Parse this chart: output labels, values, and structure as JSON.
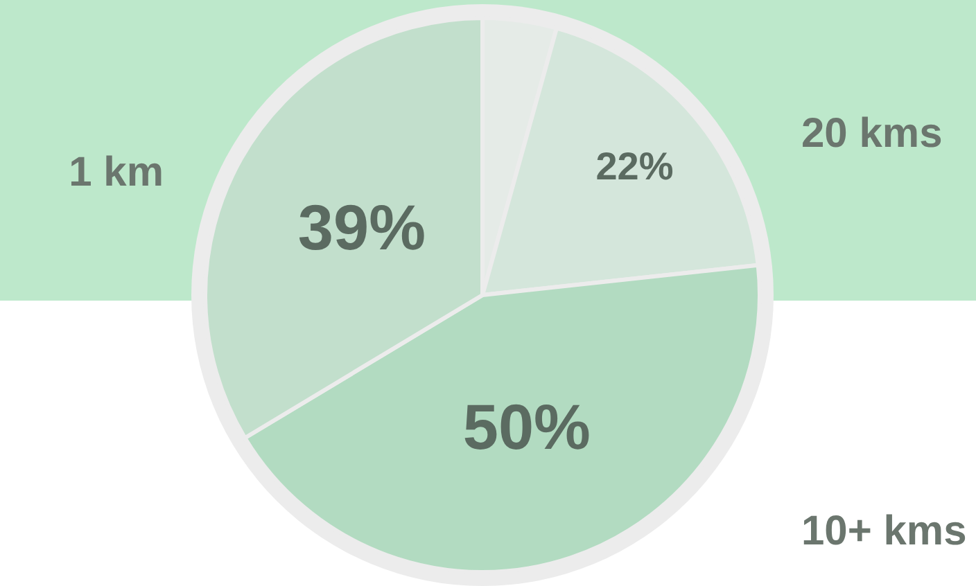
{
  "chart_data": {
    "type": "pie",
    "categories": [
      null,
      "20 kms",
      "10+ kms",
      "1 km"
    ],
    "values": [
      5,
      22,
      50,
      39
    ],
    "colors": [
      "#e5ebe7",
      "#d4e6db",
      "#b2dbc1",
      "#c2dfcc"
    ],
    "value_labels": [
      null,
      "22%",
      "50%",
      "39%"
    ]
  }
}
